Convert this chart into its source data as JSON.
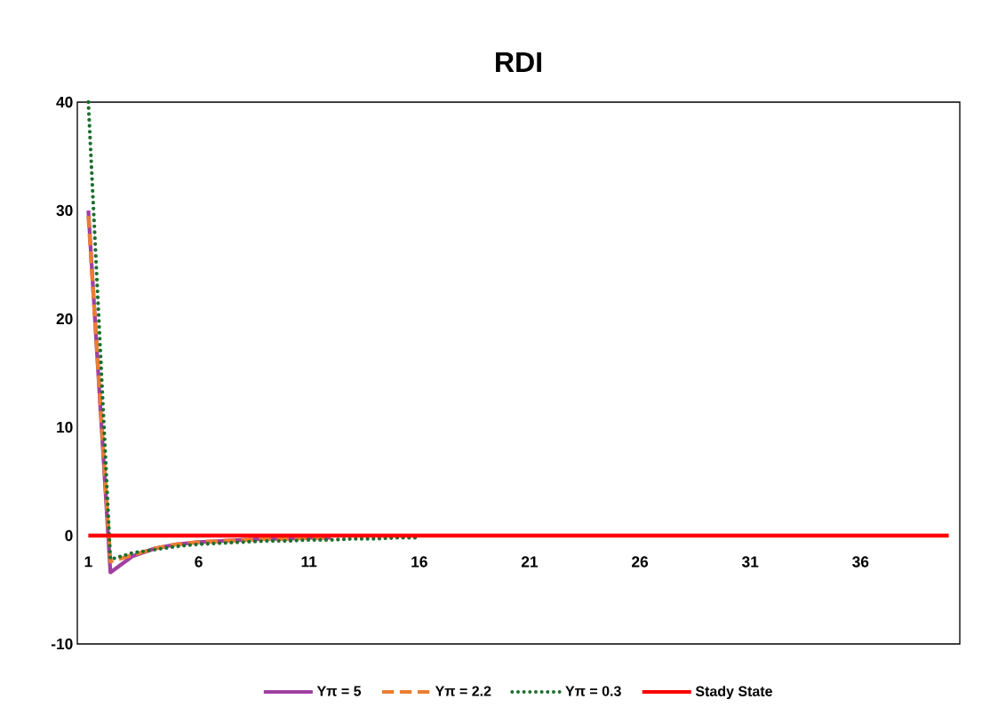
{
  "chart_data": {
    "type": "line",
    "title": "RDI",
    "categories": [
      "1",
      null,
      null,
      null,
      null,
      "6",
      null,
      null,
      null,
      null,
      "11",
      null,
      null,
      null,
      null,
      "16",
      null,
      null,
      null,
      null,
      "21",
      null,
      null,
      null,
      null,
      "26",
      null,
      null,
      null,
      null,
      "31",
      null,
      null,
      null,
      null,
      "36",
      null,
      null,
      null,
      null
    ],
    "ylim": [
      -10,
      40
    ],
    "yticks": [
      -10,
      0,
      10,
      20,
      30,
      40
    ],
    "grid": false,
    "legend": "bottom",
    "marker": "none",
    "series": [
      {
        "name": "Yπ = 5",
        "color": "#a040a0",
        "line_style": "solid",
        "values": [
          30,
          -3.4,
          -1.9,
          -1.2,
          -0.8,
          -0.6,
          -0.5,
          -0.4,
          -0.3,
          -0.3,
          -0.2,
          -0.2,
          null,
          null,
          null,
          null,
          null,
          null,
          null,
          null,
          null,
          null,
          null,
          null,
          null,
          null,
          null,
          null,
          null,
          null,
          null,
          null,
          null,
          null,
          null,
          null,
          null,
          null,
          null,
          null
        ]
      },
      {
        "name": "Yπ = 2.2",
        "color": "#ed7d31",
        "line_style": "dashed",
        "values": [
          29.5,
          -2.4,
          -1.8,
          -1.2,
          -0.8,
          -0.6,
          -0.5,
          -0.4,
          -0.3,
          -0.3,
          -0.2,
          -0.2,
          null,
          null,
          null,
          null,
          null,
          null,
          null,
          null,
          null,
          null,
          null,
          null,
          null,
          null,
          null,
          null,
          null,
          null,
          null,
          null,
          null,
          null,
          null,
          null,
          null,
          null,
          null,
          null
        ]
      },
      {
        "name": "Yπ = 0.3",
        "color": "#1e6e2e",
        "line_style": "dotted",
        "values": [
          40,
          -2.2,
          -1.6,
          -1.3,
          -1.0,
          -0.8,
          -0.7,
          -0.6,
          -0.5,
          -0.5,
          -0.4,
          -0.4,
          -0.3,
          -0.3,
          -0.2,
          -0.2,
          null,
          null,
          null,
          null,
          null,
          null,
          null,
          null,
          null,
          null,
          null,
          null,
          null,
          null,
          null,
          null,
          null,
          null,
          null,
          null,
          null,
          null,
          null,
          null
        ]
      },
      {
        "name": "Stady State",
        "color": "#ff0000",
        "line_style": "solid",
        "values": [
          0,
          0,
          0,
          0,
          0,
          0,
          0,
          0,
          0,
          0,
          0,
          0,
          0,
          0,
          0,
          0,
          0,
          0,
          0,
          0,
          0,
          0,
          0,
          0,
          0,
          0,
          0,
          0,
          0,
          0,
          0,
          0,
          0,
          0,
          0,
          0,
          0,
          0,
          0,
          0
        ]
      }
    ]
  }
}
